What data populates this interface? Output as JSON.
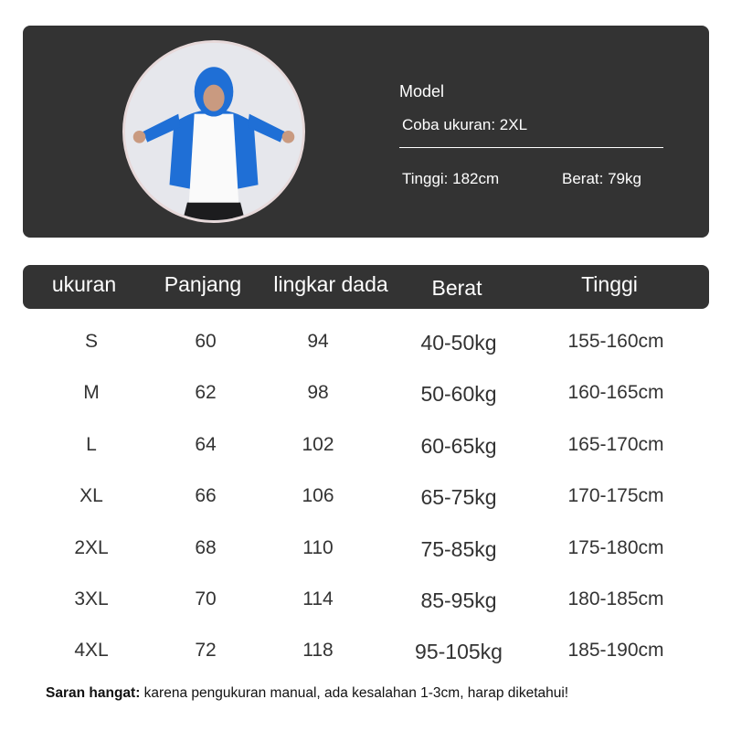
{
  "model": {
    "title": "Model",
    "try_size": "Coba ukuran: 2XL",
    "height": "Tinggi: 182cm",
    "weight": "Berat: 79kg"
  },
  "table": {
    "headers": [
      "ukuran",
      "Panjang",
      "lingkar dada",
      "Berat",
      "Tinggi"
    ],
    "rows": [
      [
        "S",
        "60",
        "94",
        "40-50kg",
        "155-160cm"
      ],
      [
        "M",
        "62",
        "98",
        "50-60kg",
        "160-165cm"
      ],
      [
        "L",
        "64",
        "102",
        "60-65kg",
        "165-170cm"
      ],
      [
        "XL",
        "66",
        "106",
        "65-75kg",
        "170-175cm"
      ],
      [
        "2XL",
        "68",
        "110",
        "75-85kg",
        "175-180cm"
      ],
      [
        "3XL",
        "70",
        "114",
        "85-95kg",
        "180-185cm"
      ],
      [
        "4XL",
        "72",
        "118",
        "95-105kg",
        "185-190cm"
      ]
    ]
  },
  "note": {
    "label": "Saran hangat:",
    "text": " karena pengukuran manual, ada kesalahan 1-3cm, harap diketahui!"
  },
  "colors": {
    "panel": "#333333",
    "jacket": "#1f6fd6"
  }
}
